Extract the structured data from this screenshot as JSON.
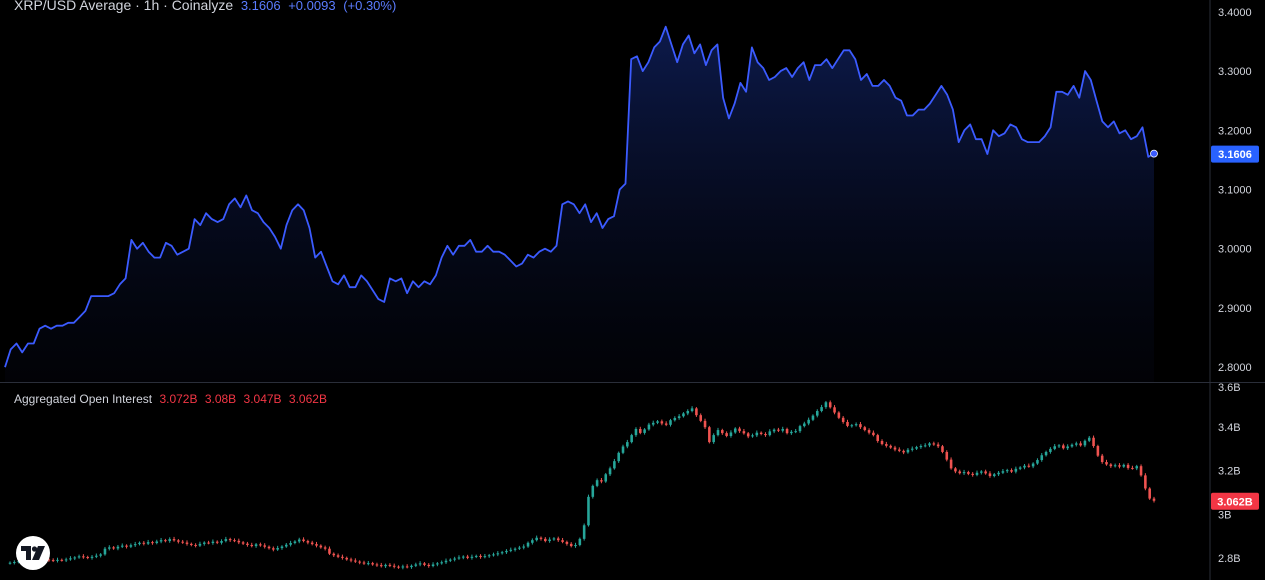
{
  "price_legend": {
    "title": "XRP/USD Average · 1h · Coinalyze",
    "last": "3.1606",
    "change": "+0.0093",
    "change_pct": "(+0.30%)"
  },
  "oi_legend": {
    "title": "Aggregated Open Interest",
    "o": "3.072B",
    "h": "3.08B",
    "l": "3.047B",
    "c": "3.062B"
  },
  "colors": {
    "line": "#3b5bff",
    "up": "#26a69a",
    "down": "#ef5350",
    "badge_price": "#2962ff",
    "badge_oi": "#f23645",
    "grid_text": "#d1d4dc"
  },
  "logo_icon": "tradingview-logo-icon",
  "chart_data": [
    {
      "type": "area",
      "series": [
        {
          "values": [
            2.8,
            2.83,
            2.84,
            2.825,
            2.84,
            2.84,
            2.865,
            2.87,
            2.865,
            2.87,
            2.87,
            2.875,
            2.875,
            2.885,
            2.895,
            2.92,
            2.92,
            2.92,
            2.92,
            2.925,
            2.94,
            2.95,
            3.015,
            3.0,
            3.01,
            2.995,
            2.985,
            2.985,
            3.01,
            3.005,
            2.99,
            2.995,
            3.0,
            3.05,
            3.04,
            3.06,
            3.05,
            3.045,
            3.05,
            3.075,
            3.085,
            3.07,
            3.09,
            3.065,
            3.06,
            3.045,
            3.035,
            3.02,
            3.0,
            3.04,
            3.065,
            3.075,
            3.065,
            3.035,
            2.985,
            2.995,
            2.97,
            2.945,
            2.94,
            2.955,
            2.935,
            2.935,
            2.955,
            2.945,
            2.93,
            2.915,
            2.91,
            2.95,
            2.945,
            2.95,
            2.925,
            2.945,
            2.935,
            2.945,
            2.94,
            2.955,
            2.985,
            3.005,
            2.99,
            3.005,
            3.005,
            3.015,
            2.995,
            2.995,
            3.005,
            2.995,
            2.995,
            2.99,
            2.98,
            2.97,
            2.975,
            2.99,
            2.985,
            2.995,
            3.0,
            2.995,
            3.005,
            3.075,
            3.08,
            3.075,
            3.06,
            3.075,
            3.045,
            3.06,
            3.035,
            3.05,
            3.055,
            3.1,
            3.11,
            3.32,
            3.325,
            3.3,
            3.315,
            3.34,
            3.35,
            3.375,
            3.345,
            3.315,
            3.345,
            3.36,
            3.33,
            3.345,
            3.31,
            3.335,
            3.345,
            3.255,
            3.22,
            3.245,
            3.28,
            3.265,
            3.34,
            3.315,
            3.305,
            3.285,
            3.29,
            3.3,
            3.305,
            3.29,
            3.305,
            3.315,
            3.285,
            3.31,
            3.31,
            3.32,
            3.305,
            3.32,
            3.335,
            3.335,
            3.32,
            3.285,
            3.295,
            3.275,
            3.275,
            3.285,
            3.275,
            3.255,
            3.25,
            3.225,
            3.225,
            3.235,
            3.235,
            3.245,
            3.26,
            3.275,
            3.26,
            3.235,
            3.18,
            3.2,
            3.21,
            3.185,
            3.185,
            3.16,
            3.2,
            3.19,
            3.195,
            3.21,
            3.205,
            3.185,
            3.18,
            3.18,
            3.18,
            3.19,
            3.205,
            3.265,
            3.265,
            3.26,
            3.275,
            3.255,
            3.3,
            3.285,
            3.25,
            3.215,
            3.205,
            3.215,
            3.195,
            3.2,
            3.185,
            3.19,
            3.205,
            3.155,
            3.1606
          ]
        }
      ],
      "yticks": [
        "3.4000",
        "3.3000",
        "3.2000",
        "3.1000",
        "3.0000",
        "2.9000",
        "2.8000"
      ],
      "ytick_values": [
        3.4,
        3.3,
        3.2,
        3.1,
        3.0,
        2.9,
        2.8
      ],
      "ylim": [
        2.775,
        3.42
      ],
      "last_label": "3.1606"
    },
    {
      "type": "candlestick",
      "unit": "B",
      "series": [
        {
          "close": [
            2.779,
            2.782,
            2.786,
            2.789,
            2.783,
            2.788,
            2.792,
            2.797,
            2.794,
            2.791,
            2.788,
            2.792,
            2.79,
            2.794,
            2.799,
            2.803,
            2.808,
            2.805,
            2.801,
            2.806,
            2.811,
            2.817,
            2.843,
            2.849,
            2.844,
            2.852,
            2.857,
            2.852,
            2.859,
            2.864,
            2.87,
            2.866,
            2.873,
            2.869,
            2.876,
            2.882,
            2.878,
            2.887,
            2.881,
            2.875,
            2.871,
            2.865,
            2.86,
            2.857,
            2.865,
            2.871,
            2.869,
            2.875,
            2.87,
            2.878,
            2.887,
            2.882,
            2.879,
            2.872,
            2.866,
            2.86,
            2.855,
            2.863,
            2.858,
            2.852,
            2.845,
            2.839,
            2.846,
            2.853,
            2.861,
            2.869,
            2.876,
            2.885,
            2.878,
            2.871,
            2.864,
            2.857,
            2.849,
            2.843,
            2.82,
            2.813,
            2.806,
            2.801,
            2.794,
            2.789,
            2.784,
            2.78,
            2.775,
            2.777,
            2.771,
            2.768,
            2.763,
            2.769,
            2.765,
            2.761,
            2.757,
            2.762,
            2.759,
            2.765,
            2.771,
            2.776,
            2.769,
            2.764,
            2.771,
            2.776,
            2.781,
            2.788,
            2.793,
            2.798,
            2.803,
            2.807,
            2.801,
            2.806,
            2.81,
            2.805,
            2.809,
            2.813,
            2.817,
            2.822,
            2.827,
            2.833,
            2.838,
            2.843,
            2.848,
            2.853,
            2.87,
            2.882,
            2.893,
            2.888,
            2.878,
            2.885,
            2.89,
            2.882,
            2.874,
            2.865,
            2.855,
            2.86,
            2.888,
            2.95,
            3.08,
            3.13,
            3.156,
            3.15,
            3.183,
            3.21,
            3.243,
            3.281,
            3.31,
            3.33,
            3.362,
            3.39,
            3.372,
            3.388,
            3.41,
            3.418,
            3.425,
            3.415,
            3.409,
            3.43,
            3.44,
            3.448,
            3.461,
            3.472,
            3.484,
            3.453,
            3.427,
            3.398,
            3.33,
            3.362,
            3.385,
            3.371,
            3.358,
            3.374,
            3.392,
            3.38,
            3.37,
            3.356,
            3.361,
            3.373,
            3.367,
            3.362,
            3.379,
            3.387,
            3.382,
            3.39,
            3.371,
            3.377,
            3.38,
            3.403,
            3.415,
            3.432,
            3.451,
            3.472,
            3.49,
            3.512,
            3.489,
            3.465,
            3.441,
            3.422,
            3.404,
            3.407,
            3.412,
            3.398,
            3.385,
            3.373,
            3.362,
            3.335,
            3.321,
            3.313,
            3.305,
            3.296,
            3.29,
            3.283,
            3.295,
            3.3,
            3.307,
            3.312,
            3.315,
            3.324,
            3.319,
            3.311,
            3.285,
            3.25,
            3.21,
            3.196,
            3.188,
            3.193,
            3.185,
            3.18,
            3.19,
            3.196,
            3.187,
            3.175,
            3.183,
            3.19,
            3.197,
            3.202,
            3.195,
            3.208,
            3.214,
            3.222,
            3.219,
            3.232,
            3.248,
            3.27,
            3.285,
            3.299,
            3.311,
            3.315,
            3.302,
            3.31,
            3.318,
            3.324,
            3.315,
            3.336,
            3.35,
            3.312,
            3.268,
            3.239,
            3.228,
            3.22,
            3.224,
            3.218,
            3.226,
            3.212,
            3.21,
            3.22,
            3.178,
            3.118,
            3.072,
            3.062
          ]
        }
      ],
      "yticks": [
        "3.6B",
        "3.4B",
        "3.2B",
        "3B",
        "2.8B"
      ],
      "ytick_values": [
        3.6,
        3.4,
        3.2,
        3.0,
        2.8
      ],
      "ylim": [
        2.7,
        3.6
      ],
      "last_label": "3.062B"
    }
  ]
}
